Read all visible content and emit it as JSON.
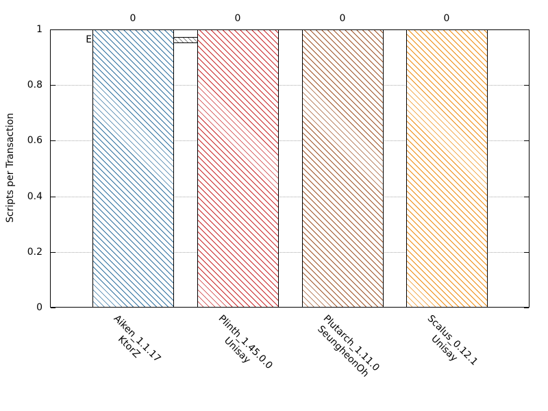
{
  "chart_data": {
    "type": "bar",
    "title": "",
    "ylabel": "Scripts per Transaction",
    "xlabel": "",
    "ylim": [
      0,
      1
    ],
    "ytick_values": [
      0,
      0.2,
      0.4,
      0.6,
      0.8,
      1
    ],
    "ytick_labels": [
      "0",
      "0.2",
      "0.4",
      "0.6",
      "0.8",
      "1"
    ],
    "grid": "horizontal-dotted",
    "legend": {
      "label": "Exceeds limits (0)",
      "position": "top-left-inside",
      "sample_style": "gray-diagonal-hatch"
    },
    "categories": [
      {
        "line1": "Aiken_1.1.17",
        "line2": "KtorZ"
      },
      {
        "line1": "Plinth_1.45.0.0",
        "line2": "Unisay"
      },
      {
        "line1": "Plutarch_1.11.0",
        "line2": "SeungheonOh"
      },
      {
        "line1": "Scalus_0.12.1",
        "line2": "Unisay"
      }
    ],
    "values": [
      1,
      1,
      1,
      1
    ],
    "bar_top_labels": [
      "0",
      "0",
      "0",
      "0"
    ],
    "bar_colors": [
      "#2e6f9e",
      "#c82527",
      "#9c5226",
      "#ee8a0e"
    ],
    "hatch": "diagonal-backslash",
    "axis_color": "#000000",
    "grid_color": "#a9a9a9",
    "background_color": "#ffffff"
  }
}
